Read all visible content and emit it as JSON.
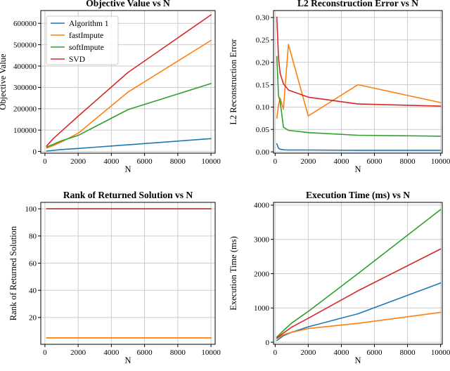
{
  "figure": {
    "background": "#ffffff",
    "grid_color": "#cccccc",
    "spine_color": "#000000",
    "series_colors": {
      "Algorithm 1": "#1f77b4",
      "fastImpute": "#ff7f0e",
      "softImpute": "#2ca02c",
      "SVD": "#d62728"
    }
  },
  "chart_data": [
    {
      "type": "line",
      "title": "Objective Value vs N",
      "xlabel": "N",
      "ylabel": "Objective Value",
      "grid": true,
      "legend": {
        "position": "upper left",
        "labels": [
          "Algorithm 1",
          "fastImpute",
          "softImpute",
          "SVD"
        ]
      },
      "x": [
        100,
        500,
        1000,
        2000,
        5000,
        10000
      ],
      "series": [
        {
          "name": "Algorithm 1",
          "color": "#1f77b4",
          "values": [
            2000,
            5000,
            9000,
            14000,
            31000,
            60000
          ]
        },
        {
          "name": "fastImpute",
          "color": "#ff7f0e",
          "values": [
            16000,
            28000,
            45000,
            85000,
            278000,
            520000
          ]
        },
        {
          "name": "softImpute",
          "color": "#2ca02c",
          "values": [
            21000,
            33000,
            50000,
            75000,
            196000,
            318000
          ]
        },
        {
          "name": "SVD",
          "color": "#d62728",
          "values": [
            26000,
            60000,
            95000,
            165000,
            370000,
            640000
          ]
        }
      ],
      "xlim": [
        -250,
        10250
      ],
      "ylim": [
        -8000,
        660000
      ],
      "xticks": [
        0,
        2000,
        4000,
        6000,
        8000,
        10000
      ],
      "xtick_labels": [
        "0",
        "2000",
        "4000",
        "6000",
        "8000",
        "10000"
      ],
      "yticks": [
        0,
        100000,
        200000,
        300000,
        400000,
        500000,
        600000
      ],
      "ytick_labels": [
        "0",
        "100000",
        "200000",
        "300000",
        "400000",
        "500000",
        "600000"
      ]
    },
    {
      "type": "line",
      "title": "L2 Reconstruction Error vs N",
      "xlabel": "N",
      "ylabel": "L2 Reconstruction Error",
      "grid": true,
      "legend": null,
      "x": [
        100,
        200,
        300,
        500,
        800,
        2000,
        5000,
        10000
      ],
      "series": [
        {
          "name": "Algorithm 1",
          "color": "#1f77b4",
          "values": [
            0.018,
            0.008,
            0.006,
            0.0045,
            0.004,
            0.004,
            0.0035,
            0.0035
          ]
        },
        {
          "name": "fastImpute",
          "color": "#ff7f0e",
          "values": [
            0.075,
            0.105,
            0.12,
            0.095,
            0.24,
            0.08,
            0.15,
            0.11
          ]
        },
        {
          "name": "softImpute",
          "color": "#2ca02c",
          "values": [
            0.213,
            0.125,
            0.113,
            0.055,
            0.048,
            0.043,
            0.037,
            0.035
          ]
        },
        {
          "name": "SVD",
          "color": "#d62728",
          "values": [
            0.301,
            0.21,
            0.175,
            0.152,
            0.138,
            0.122,
            0.107,
            0.102
          ]
        }
      ],
      "xlim": [
        -100,
        10100
      ],
      "ylim": [
        -0.003,
        0.3155
      ],
      "xticks": [
        0,
        2000,
        4000,
        6000,
        8000,
        10000
      ],
      "xtick_labels": [
        "0",
        "2000",
        "4000",
        "6000",
        "8000",
        "10000"
      ],
      "yticks": [
        0,
        0.05,
        0.1,
        0.15,
        0.2,
        0.25,
        0.3
      ],
      "ytick_labels": [
        "0.00",
        "0.05",
        "0.10",
        "0.15",
        "0.20",
        "0.25",
        "0.30"
      ]
    },
    {
      "type": "line",
      "title": "Rank of Returned Solution vs N",
      "xlabel": "N",
      "ylabel": "Rank of Returned Solution",
      "grid": true,
      "legend": null,
      "x": [
        100,
        10000
      ],
      "series": [
        {
          "name": "Algorithm 1",
          "color": "#1f77b4",
          "values": [
            5,
            5
          ]
        },
        {
          "name": "fastImpute",
          "color": "#ff7f0e",
          "values": [
            5,
            5
          ]
        },
        {
          "name": "softImpute",
          "color": "#2ca02c",
          "values": [
            100,
            100
          ]
        },
        {
          "name": "SVD",
          "color": "#d62728",
          "values": [
            100,
            100
          ]
        }
      ],
      "xlim": [
        -250,
        10250
      ],
      "ylim": [
        0.25,
        104.75
      ],
      "xticks": [
        0,
        2000,
        4000,
        6000,
        8000,
        10000
      ],
      "xtick_labels": [
        "0",
        "2000",
        "4000",
        "6000",
        "8000",
        "10000"
      ],
      "yticks": [
        20,
        40,
        60,
        80,
        100
      ],
      "ytick_labels": [
        "20",
        "40",
        "60",
        "80",
        "100"
      ]
    },
    {
      "type": "line",
      "title": "Execution Time (ms) vs N",
      "xlabel": "N",
      "ylabel": "Execution Time (ms)",
      "grid": true,
      "legend": null,
      "x": [
        100,
        500,
        1000,
        2000,
        5000,
        10000
      ],
      "series": [
        {
          "name": "Algorithm 1",
          "color": "#1f77b4",
          "values": [
            50,
            190,
            290,
            450,
            830,
            1730
          ]
        },
        {
          "name": "fastImpute",
          "color": "#ff7f0e",
          "values": [
            110,
            220,
            290,
            400,
            550,
            870
          ]
        },
        {
          "name": "softImpute",
          "color": "#2ca02c",
          "values": [
            150,
            340,
            560,
            900,
            2000,
            3870
          ]
        },
        {
          "name": "SVD",
          "color": "#d62728",
          "values": [
            120,
            270,
            440,
            700,
            1500,
            2720
          ]
        }
      ],
      "xlim": [
        -100,
        10100
      ],
      "ylim": [
        -60,
        4080
      ],
      "xticks": [
        0,
        2000,
        4000,
        6000,
        8000,
        10000
      ],
      "xtick_labels": [
        "0",
        "2000",
        "4000",
        "6000",
        "8000",
        "10000"
      ],
      "yticks": [
        0,
        1000,
        2000,
        3000,
        4000
      ],
      "ytick_labels": [
        "0",
        "1000",
        "2000",
        "3000",
        "4000"
      ]
    }
  ]
}
